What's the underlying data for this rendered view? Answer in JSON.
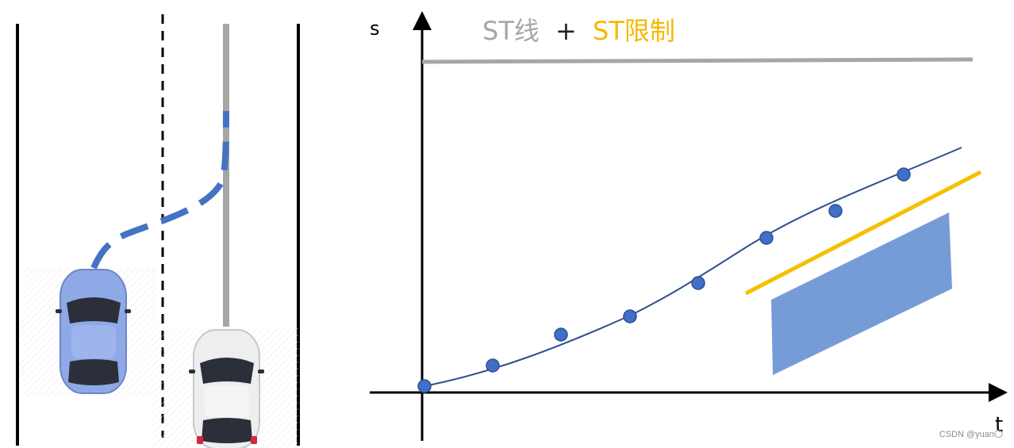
{
  "chart_title": {
    "part1": "ST线",
    "plus": "+",
    "part2": "ST限制",
    "color_part1": "#a6a6a6",
    "color_part2": "#f5b800"
  },
  "axes": {
    "y_label": "s",
    "x_label": "t"
  },
  "colors": {
    "axis": "#000000",
    "st_line_gray": "#a6a6a6",
    "curve": "#2f4f8f",
    "points_fill": "#3f6fc6",
    "limit_line": "#f5c000",
    "obstacle": "#6f97d6",
    "trajectory": "#4472c4",
    "ego_car": "#8fa9e6",
    "other_car": "#eeeeee"
  },
  "scene": {
    "ego_car_icon": "car-icon",
    "other_car_icon": "car-icon"
  },
  "watermark": "CSDN @yuan〇"
}
